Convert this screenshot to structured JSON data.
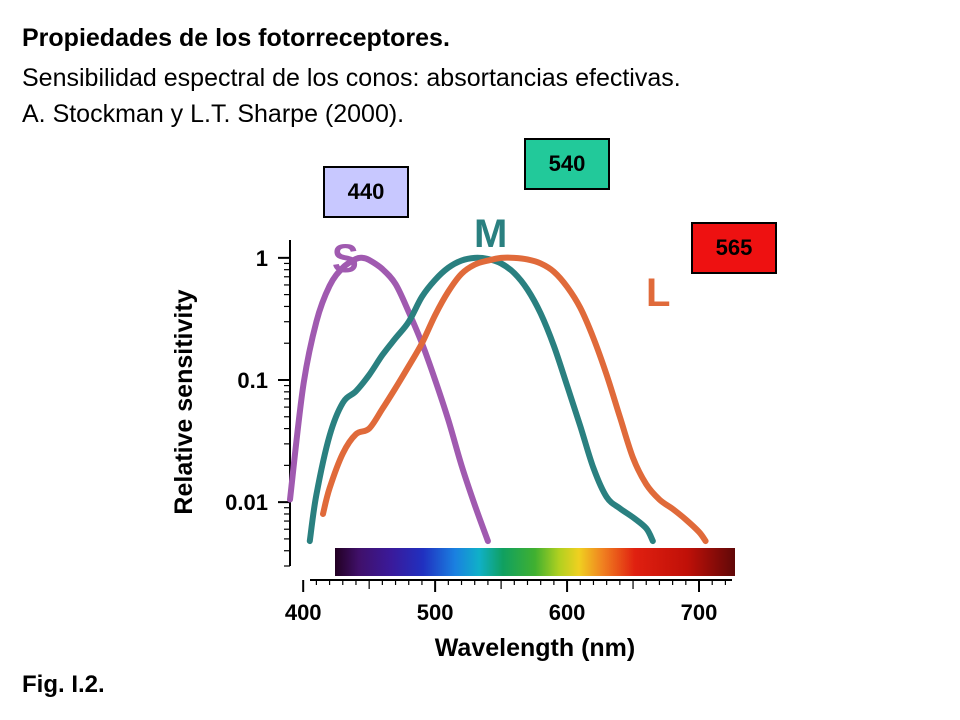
{
  "header": {
    "title": "Propiedades de los fotorreceptores.",
    "subtitle": "Sensibilidad espectral de los conos: absortancias efectivas.",
    "citation": "A. Stockman y L.T. Sharpe (2000)."
  },
  "figure_label": "Fig. I.2.",
  "peaks": [
    {
      "label": "440",
      "color": "#c8c8ff"
    },
    {
      "label": "540",
      "color": "#22c99a"
    },
    {
      "label": "565",
      "color": "#ee1111"
    }
  ],
  "chart_data": {
    "type": "line",
    "xlabel": "Wavelength (nm)",
    "ylabel": "Relative sensitivity",
    "xlim": [
      390,
      725
    ],
    "ylim": [
      0.003,
      1.4
    ],
    "yscale": "log",
    "x_ticks": [
      {
        "value": 400,
        "label": "400"
      },
      {
        "value": 500,
        "label": "500"
      },
      {
        "value": 600,
        "label": "600"
      },
      {
        "value": 700,
        "label": "700"
      }
    ],
    "y_ticks": [
      {
        "value": 1,
        "label": "1"
      },
      {
        "value": 0.1,
        "label": "0.1"
      },
      {
        "value": 0.01,
        "label": "0.01"
      }
    ],
    "grid": false,
    "series": [
      {
        "name": "S",
        "color": "#a05ab0",
        "x": [
          390,
          400,
          410,
          420,
          430,
          440,
          445,
          450,
          460,
          470,
          480,
          490,
          500,
          510,
          520,
          530,
          540
        ],
        "y": [
          0.0105,
          0.089,
          0.3,
          0.59,
          0.83,
          0.98,
          1.0,
          0.96,
          0.81,
          0.61,
          0.36,
          0.2,
          0.1,
          0.047,
          0.02,
          0.0095,
          0.0048
        ]
      },
      {
        "name": "M",
        "color": "#2a8080",
        "x": [
          405,
          410,
          420,
          430,
          440,
          450,
          460,
          470,
          480,
          490,
          500,
          510,
          520,
          530,
          540,
          550,
          560,
          570,
          580,
          590,
          600,
          610,
          620,
          630,
          640,
          650,
          660,
          665
        ],
        "y": [
          0.0048,
          0.0115,
          0.035,
          0.065,
          0.081,
          0.11,
          0.16,
          0.22,
          0.3,
          0.48,
          0.66,
          0.83,
          0.95,
          1.0,
          0.98,
          0.9,
          0.75,
          0.55,
          0.35,
          0.19,
          0.09,
          0.042,
          0.019,
          0.011,
          0.0089,
          0.0075,
          0.0061,
          0.0048
        ]
      },
      {
        "name": "L",
        "color": "#e06a3a",
        "x": [
          415,
          420,
          430,
          440,
          450,
          460,
          470,
          480,
          490,
          500,
          510,
          520,
          530,
          540,
          550,
          560,
          570,
          580,
          590,
          600,
          610,
          620,
          630,
          640,
          650,
          660,
          670,
          680,
          690,
          700,
          705
        ],
        "y": [
          0.008,
          0.013,
          0.025,
          0.036,
          0.04,
          0.058,
          0.086,
          0.13,
          0.2,
          0.34,
          0.53,
          0.74,
          0.88,
          0.95,
          1.0,
          1.0,
          0.97,
          0.9,
          0.77,
          0.58,
          0.39,
          0.22,
          0.11,
          0.05,
          0.023,
          0.014,
          0.0105,
          0.0088,
          0.0072,
          0.0057,
          0.0048
        ]
      }
    ]
  }
}
